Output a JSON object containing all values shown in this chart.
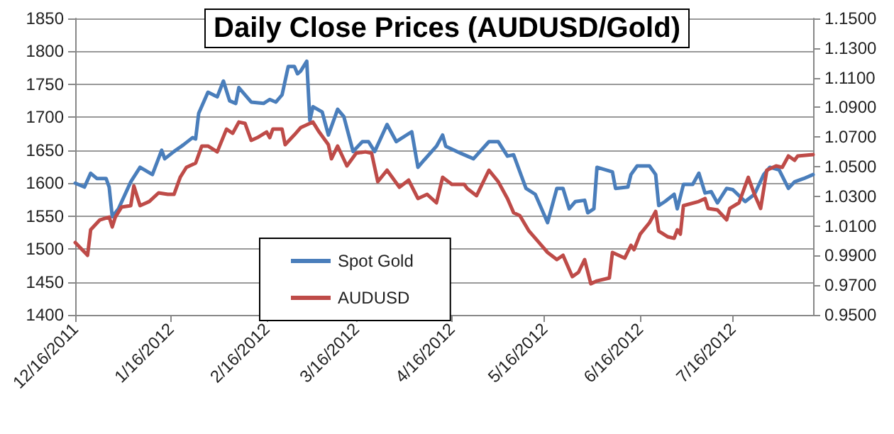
{
  "chart_data": {
    "type": "line",
    "title": "Daily Close Prices (AUDUSD/Gold)",
    "xlim": [
      "2011-12-16",
      "2012-08-11"
    ],
    "xticks": [
      {
        "value": "2011-12-16",
        "label": "12/16/2011"
      },
      {
        "value": "2012-01-16",
        "label": "1/16/2012"
      },
      {
        "value": "2012-02-16",
        "label": "2/16/2012"
      },
      {
        "value": "2012-03-16",
        "label": "3/16/2012"
      },
      {
        "value": "2012-04-16",
        "label": "4/16/2012"
      },
      {
        "value": "2012-05-16",
        "label": "5/16/2012"
      },
      {
        "value": "2012-06-16",
        "label": "6/16/2012"
      },
      {
        "value": "2012-07-16",
        "label": "7/16/2012"
      }
    ],
    "ylim": [
      1400,
      1850
    ],
    "yticks": [
      1400,
      1450,
      1500,
      1550,
      1600,
      1650,
      1700,
      1750,
      1800,
      1850
    ],
    "y2lim": [
      0.95,
      1.15
    ],
    "y2ticks": [
      {
        "value": 0.95,
        "label": "0.9500"
      },
      {
        "value": 0.97,
        "label": "0.9700"
      },
      {
        "value": 0.99,
        "label": "0.9900"
      },
      {
        "value": 1.01,
        "label": "1.0100"
      },
      {
        "value": 1.03,
        "label": "1.0300"
      },
      {
        "value": 1.05,
        "label": "1.0500"
      },
      {
        "value": 1.07,
        "label": "1.0700"
      },
      {
        "value": 1.09,
        "label": "1.0900"
      },
      {
        "value": 1.11,
        "label": "1.1100"
      },
      {
        "value": 1.13,
        "label": "1.1300"
      },
      {
        "value": 1.15,
        "label": "1.1500"
      }
    ],
    "grid": "y",
    "legend": "bottom",
    "marker": "none",
    "line_style": "solid",
    "series": [
      {
        "name": "Spot Gold",
        "color": "#4a7ebb",
        "x": [
          "2011-12-16",
          "2011-12-19",
          "2011-12-21",
          "2011-12-23",
          "2011-12-26",
          "2011-12-27",
          "2011-12-28",
          "2011-12-30",
          "2012-01-03",
          "2012-01-06",
          "2012-01-10",
          "2012-01-13",
          "2012-01-14",
          "2012-01-17",
          "2012-01-20",
          "2012-01-23",
          "2012-01-24",
          "2012-01-25",
          "2012-01-28",
          "2012-01-31",
          "2012-02-02",
          "2012-02-04",
          "2012-02-06",
          "2012-02-07",
          "2012-02-11",
          "2012-02-15",
          "2012-02-17",
          "2012-02-19",
          "2012-02-21",
          "2012-02-23",
          "2012-02-25",
          "2012-02-26",
          "2012-02-27",
          "2012-02-29",
          "2012-03-01",
          "2012-03-02",
          "2012-03-05",
          "2012-03-07",
          "2012-03-10",
          "2012-03-12",
          "2012-03-15",
          "2012-03-18",
          "2012-03-20",
          "2012-03-22",
          "2012-03-26",
          "2012-03-29",
          "2012-04-03",
          "2012-04-05",
          "2012-04-07",
          "2012-04-11",
          "2012-04-13",
          "2012-04-14",
          "2012-04-19",
          "2012-04-23",
          "2012-04-28",
          "2012-05-01",
          "2012-05-04",
          "2012-05-06",
          "2012-05-10",
          "2012-05-13",
          "2012-05-17",
          "2012-05-20",
          "2012-05-22",
          "2012-05-24",
          "2012-05-26",
          "2012-05-29",
          "2012-05-30",
          "2012-06-01",
          "2012-06-02",
          "2012-06-07",
          "2012-06-08",
          "2012-06-12",
          "2012-06-13",
          "2012-06-15",
          "2012-06-19",
          "2012-06-21",
          "2012-06-22",
          "2012-06-24",
          "2012-06-27",
          "2012-06-28",
          "2012-06-30",
          "2012-07-03",
          "2012-07-05",
          "2012-07-07",
          "2012-07-09",
          "2012-07-11",
          "2012-07-14",
          "2012-07-16",
          "2012-07-20",
          "2012-07-23",
          "2012-07-26",
          "2012-07-28",
          "2012-07-31",
          "2012-08-03",
          "2012-08-05",
          "2012-08-08",
          "2012-08-11"
        ],
        "values": [
          1600,
          1594,
          1615,
          1607,
          1607,
          1594,
          1549,
          1561,
          1602,
          1624,
          1613,
          1650,
          1637,
          1648,
          1658,
          1669,
          1667,
          1706,
          1738,
          1731,
          1755,
          1725,
          1721,
          1745,
          1723,
          1721,
          1727,
          1723,
          1734,
          1777,
          1777,
          1766,
          1770,
          1785,
          1695,
          1716,
          1708,
          1673,
          1712,
          1701,
          1648,
          1663,
          1663,
          1648,
          1689,
          1663,
          1678,
          1624,
          1635,
          1656,
          1673,
          1656,
          1645,
          1637,
          1663,
          1663,
          1641,
          1643,
          1592,
          1583,
          1540,
          1592,
          1592,
          1561,
          1572,
          1574,
          1555,
          1561,
          1624,
          1617,
          1592,
          1594,
          1613,
          1626,
          1626,
          1613,
          1566,
          1572,
          1583,
          1561,
          1598,
          1598,
          1615,
          1585,
          1587,
          1570,
          1592,
          1590,
          1572,
          1583,
          1613,
          1624,
          1620,
          1592,
          1602,
          1607,
          1613
        ]
      },
      {
        "name": "AUDUSD",
        "color": "#be4b48",
        "axis": "y2",
        "x": [
          "2011-12-16",
          "2011-12-20",
          "2011-12-21",
          "2011-12-24",
          "2011-12-27",
          "2011-12-28",
          "2011-12-29",
          "2011-12-31",
          "2012-01-03",
          "2012-01-04",
          "2012-01-06",
          "2012-01-09",
          "2012-01-12",
          "2012-01-15",
          "2012-01-17",
          "2012-01-19",
          "2012-01-21",
          "2012-01-24",
          "2012-01-26",
          "2012-01-28",
          "2012-01-31",
          "2012-02-03",
          "2012-02-05",
          "2012-02-07",
          "2012-02-09",
          "2012-02-11",
          "2012-02-13",
          "2012-02-16",
          "2012-02-17",
          "2012-02-18",
          "2012-02-21",
          "2012-02-22",
          "2012-02-25",
          "2012-02-27",
          "2012-03-02",
          "2012-03-04",
          "2012-03-07",
          "2012-03-08",
          "2012-03-10",
          "2012-03-13",
          "2012-03-16",
          "2012-03-19",
          "2012-03-21",
          "2012-03-23",
          "2012-03-26",
          "2012-03-30",
          "2012-04-02",
          "2012-04-05",
          "2012-04-08",
          "2012-04-11",
          "2012-04-13",
          "2012-04-16",
          "2012-04-20",
          "2012-04-21",
          "2012-04-24",
          "2012-04-28",
          "2012-05-01",
          "2012-05-04",
          "2012-05-06",
          "2012-05-08",
          "2012-05-11",
          "2012-05-13",
          "2012-05-17",
          "2012-05-20",
          "2012-05-22",
          "2012-05-25",
          "2012-05-27",
          "2012-05-29",
          "2012-05-31",
          "2012-06-02",
          "2012-06-06",
          "2012-06-07",
          "2012-06-11",
          "2012-06-13",
          "2012-06-14",
          "2012-06-16",
          "2012-06-19",
          "2012-06-21",
          "2012-06-22",
          "2012-06-25",
          "2012-06-27",
          "2012-06-28",
          "2012-06-29",
          "2012-06-30",
          "2012-07-05",
          "2012-07-07",
          "2012-07-08",
          "2012-07-11",
          "2012-07-14",
          "2012-07-15",
          "2012-07-18",
          "2012-07-21",
          "2012-07-23",
          "2012-07-25",
          "2012-07-27",
          "2012-07-30",
          "2012-08-01",
          "2012-08-03",
          "2012-08-05",
          "2012-08-06",
          "2012-08-11"
        ],
        "values": [
          0.9988,
          0.9902,
          1.0074,
          1.0141,
          1.016,
          1.0093,
          1.016,
          1.0227,
          1.0237,
          1.037,
          1.0237,
          1.0265,
          1.0323,
          1.0313,
          1.0313,
          1.0428,
          1.0495,
          1.0524,
          1.0639,
          1.0639,
          1.06,
          1.0753,
          1.0725,
          1.0801,
          1.0792,
          1.0677,
          1.0696,
          1.0734,
          1.0696,
          1.0753,
          1.0753,
          1.0648,
          1.0715,
          1.0763,
          1.0801,
          1.0734,
          1.0648,
          1.0553,
          1.0639,
          1.0505,
          1.0591,
          1.06,
          1.0591,
          1.0399,
          1.0476,
          1.0361,
          1.0409,
          1.0285,
          1.0313,
          1.0256,
          1.0428,
          1.038,
          1.038,
          1.0352,
          1.0304,
          1.0476,
          1.0399,
          1.0285,
          1.0189,
          1.017,
          1.0065,
          1.0017,
          0.9921,
          0.9873,
          0.9902,
          0.9758,
          0.9787,
          0.9873,
          0.971,
          0.9729,
          0.9749,
          0.9921,
          0.9883,
          0.9969,
          0.994,
          1.0045,
          1.0122,
          1.0198,
          1.0065,
          1.0026,
          1.0017,
          1.0074,
          1.0045,
          1.0237,
          1.0265,
          1.0285,
          1.0218,
          1.0208,
          1.0141,
          1.0218,
          1.0256,
          1.0428,
          1.0313,
          1.0218,
          1.0476,
          1.0505,
          1.0495,
          1.0572,
          1.0543,
          1.0572,
          1.0581
        ]
      }
    ]
  }
}
